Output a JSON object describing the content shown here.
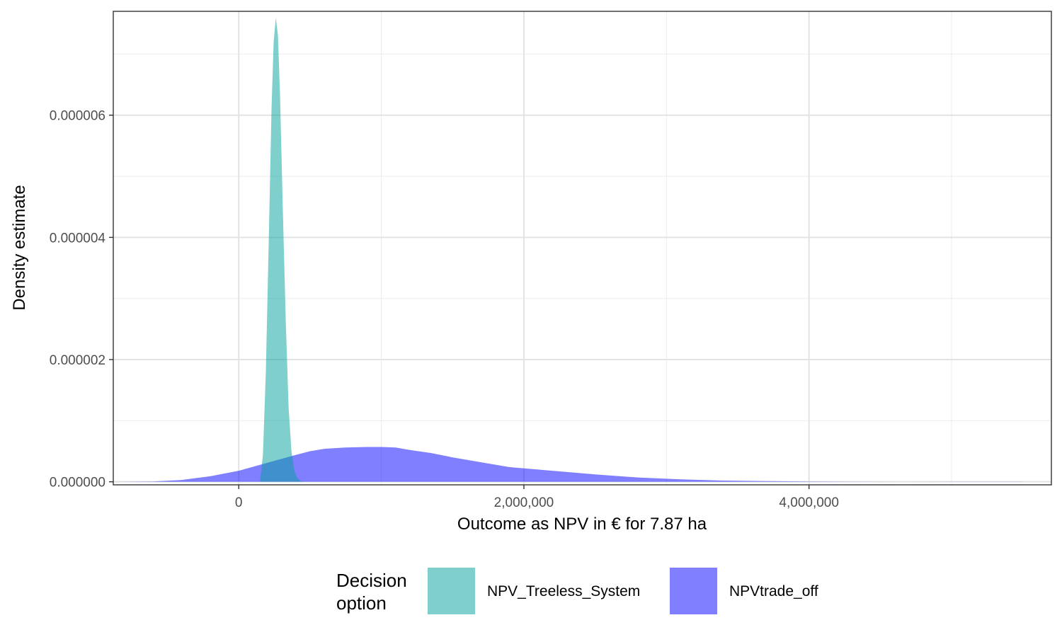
{
  "chart_data": {
    "type": "area",
    "title": "",
    "xlabel": "Outcome as NPV in € for 7.87 ha",
    "ylabel": "Density estimate",
    "xlim": [
      -880000,
      5700000
    ],
    "ylim": [
      -5e-08,
      7.7e-06
    ],
    "x_ticks": [
      {
        "value": 0,
        "label": "0"
      },
      {
        "value": 2000000,
        "label": "2,000,000"
      },
      {
        "value": 4000000,
        "label": "4,000,000"
      }
    ],
    "y_ticks": [
      {
        "value": 0,
        "label": "0.000000"
      },
      {
        "value": 2e-06,
        "label": "0.000002"
      },
      {
        "value": 4e-06,
        "label": "0.000004"
      },
      {
        "value": 6e-06,
        "label": "0.000006"
      }
    ],
    "grid": true,
    "legend": {
      "title_lines": [
        "Decision",
        "option"
      ],
      "position": "bottom"
    },
    "series": [
      {
        "name": "NPV_Treeless_System",
        "color": "#00a19a",
        "opacity": 0.5,
        "x": [
          150000,
          170000,
          190000,
          210000,
          230000,
          245000,
          260000,
          275000,
          290000,
          310000,
          330000,
          350000,
          370000,
          390000,
          410000,
          430000,
          460000
        ],
        "y": [
          0,
          4.5e-07,
          1.8e-06,
          3.9e-06,
          6.1e-06,
          7.2e-06,
          7.6e-06,
          7.3e-06,
          6.3e-06,
          4.4e-06,
          2.6e-06,
          1.2e-06,
          5e-07,
          1.8e-07,
          6e-08,
          2e-08,
          0
        ]
      },
      {
        "name": "NPVtrade_off",
        "color": "#0000ff",
        "opacity": 0.5,
        "x": [
          -880000,
          -600000,
          -400000,
          -200000,
          0,
          200000,
          400000,
          500000,
          600000,
          750000,
          900000,
          1000000,
          1100000,
          1200000,
          1350000,
          1500000,
          1700000,
          1900000,
          2200000,
          2500000,
          2800000,
          3100000,
          3400000,
          3700000,
          4000000,
          4300000,
          4700000,
          5100000,
          5500000
        ],
        "y": [
          7e-10,
          5e-09,
          3e-08,
          9e-08,
          1.8e-07,
          3.1e-07,
          4.4e-07,
          5e-07,
          5.4e-07,
          5.6e-07,
          5.7e-07,
          5.7e-07,
          5.6e-07,
          5.2e-07,
          4.7e-07,
          4e-07,
          3.2e-07,
          2.4e-07,
          1.8e-07,
          1.2e-07,
          7e-08,
          4e-08,
          2e-08,
          1e-08,
          4e-09,
          2e-09,
          6e-10,
          2e-10,
          1e-10
        ]
      }
    ]
  }
}
